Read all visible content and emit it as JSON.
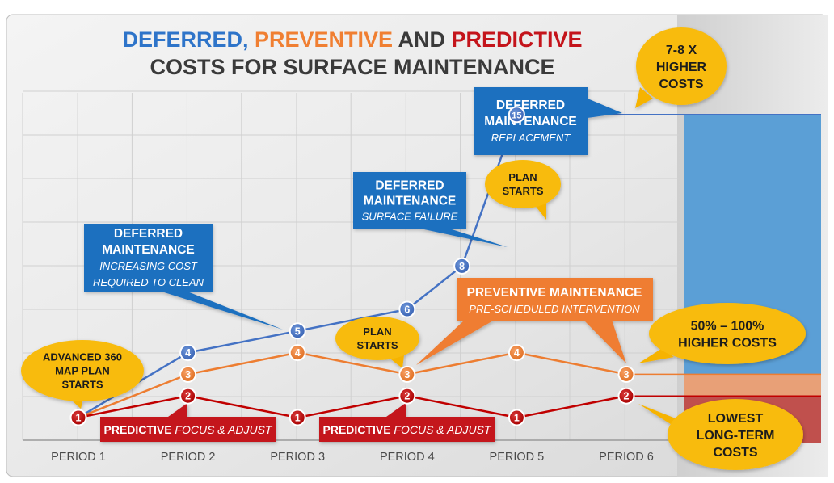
{
  "title": {
    "line1_parts": [
      {
        "text": "DEFERRED,",
        "color": "#2e74c9"
      },
      {
        "text": " PREVENTIVE",
        "color": "#f07f32"
      },
      {
        "text": " AND ",
        "color": "#3a3a3a"
      },
      {
        "text": "PREDICTIVE",
        "color": "#c4141b"
      }
    ],
    "line2": "COSTS FOR SURFACE MAINTENANCE"
  },
  "chart_data": {
    "type": "line",
    "categories": [
      "PERIOD 1",
      "PERIOD 2",
      "PERIOD 3",
      "PERIOD 4",
      "PERIOD 5",
      "PERIOD 6"
    ],
    "x": [
      1,
      1.5,
      2,
      3,
      4,
      4.5,
      5,
      6
    ],
    "series": [
      {
        "key": "deferred",
        "color": "#4472c4",
        "x": [
          1,
          2,
          3,
          4,
          4.5,
          5
        ],
        "values": [
          1,
          4,
          5,
          6,
          8,
          15
        ]
      },
      {
        "key": "preventive",
        "color": "#ed7d31",
        "x": [
          1,
          2,
          3,
          4,
          5,
          6
        ],
        "values": [
          1,
          3,
          4,
          3,
          4,
          3
        ]
      },
      {
        "key": "predictive",
        "color": "#c00000",
        "x": [
          1,
          2,
          3,
          4,
          5,
          6
        ],
        "values": [
          1,
          2,
          1,
          2,
          1,
          2
        ]
      }
    ],
    "grid": true,
    "legend": "none"
  },
  "side_bars": [
    {
      "key": "deferred",
      "value": 15,
      "color": "#5b9fd6"
    },
    {
      "key": "preventive",
      "value": 3,
      "color": "#e8a077"
    },
    {
      "key": "predictive",
      "value": 2,
      "color": "#c0504d"
    }
  ],
  "blue_callouts": [
    {
      "id": "clean",
      "title1": "DEFERRED",
      "title2": "MAINTENANCE",
      "sub1": "INCREASING COST",
      "sub2": "REQUIRED TO CLEAN"
    },
    {
      "id": "failure",
      "title1": "DEFERRED",
      "title2": "MAINTENANCE",
      "sub1": "SURFACE FAILURE",
      "sub2": ""
    },
    {
      "id": "replacement",
      "title1": "DEFERRED",
      "title2": "MAINTENANCE",
      "sub1": "REPLACEMENT",
      "sub2": ""
    }
  ],
  "orange_callout": {
    "title": "PREVENTIVE MAINTENANCE",
    "sub": "PRE-SCHEDULED INTERVENTION"
  },
  "red_callouts": [
    {
      "bold": "PREDICTIVE",
      "italic": " FOCUS & ADJUST"
    },
    {
      "bold": "PREDICTIVE",
      "italic": " FOCUS & ADJUST"
    }
  ],
  "yellow_bubbles": [
    {
      "id": "advanced",
      "lines": [
        "ADVANCED 360",
        "MAP PLAN",
        "STARTS"
      ]
    },
    {
      "id": "plan1",
      "lines": [
        "PLAN",
        "STARTS"
      ]
    },
    {
      "id": "plan2",
      "lines": [
        "PLAN",
        "STARTS"
      ]
    },
    {
      "id": "higher78",
      "lines": [
        "7-8 X",
        "HIGHER",
        "COSTS"
      ]
    },
    {
      "id": "higher50",
      "lines": [
        "50% – 100%",
        "HIGHER COSTS"
      ]
    },
    {
      "id": "lowest",
      "lines": [
        "LOWEST",
        "LONG-TERM",
        "COSTS"
      ]
    }
  ]
}
